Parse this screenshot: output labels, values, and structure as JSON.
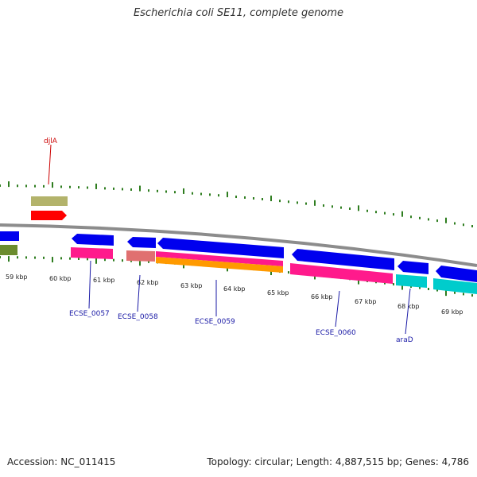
{
  "title": "Escherichia coli SE11, complete genome",
  "footer": {
    "accession": "Accession: NC_011415",
    "summary": "Topology: circular; Length: 4,887,515 bp; Genes: 4,786"
  },
  "ticks": [
    {
      "label": "59 kbp"
    },
    {
      "label": "60 kbp"
    },
    {
      "label": "61 kbp"
    },
    {
      "label": "62 kbp"
    },
    {
      "label": "63 kbp"
    },
    {
      "label": "64 kbp"
    },
    {
      "label": "65 kbp"
    },
    {
      "label": "66 kbp"
    },
    {
      "label": "67 kbp"
    },
    {
      "label": "68 kbp"
    },
    {
      "label": "69 kbp"
    }
  ],
  "gene_labels": [
    {
      "text": "djlA",
      "color": "#cc0000"
    },
    {
      "text": "ECSE_0057",
      "color": "#1a1aa6"
    },
    {
      "text": "ECSE_0058",
      "color": "#1a1aa6"
    },
    {
      "text": "ECSE_0059",
      "color": "#1a1aa6"
    },
    {
      "text": "ECSE_0060",
      "color": "#1a1aa6"
    },
    {
      "text": "araD",
      "color": "#1a1aa6"
    }
  ],
  "colors": {
    "backbone": "#8c8c8c",
    "tick": "#2e7d1f",
    "cds_forward": "#0000ee",
    "gene": "#ff1a8c",
    "tan": "#b3b36b",
    "red": "#ff0000",
    "olive": "#6b8c2e",
    "salmon": "#e07070",
    "orange": "#ff9a00",
    "cyan": "#00cccc"
  }
}
